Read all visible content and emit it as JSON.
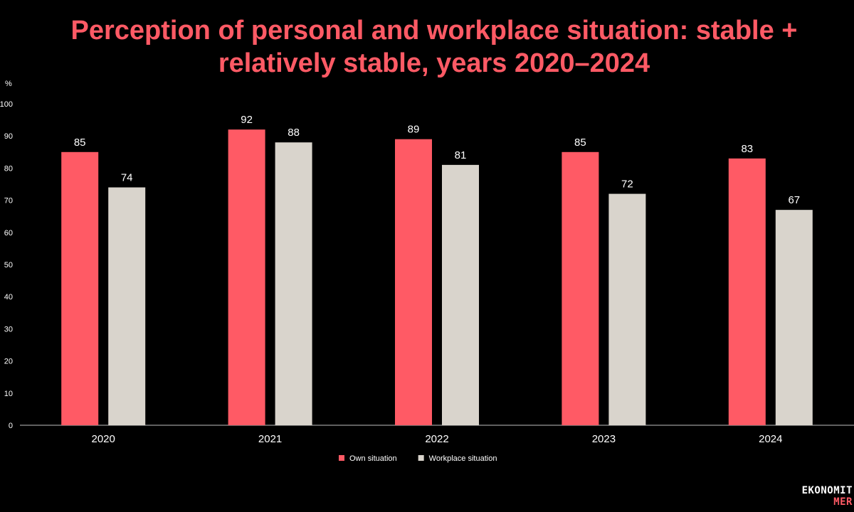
{
  "title_line1": "Perception of personal and workplace situation: stable +",
  "title_line2": "relatively stable, years 2020–2024",
  "logo": {
    "line1": "EKONOMIT",
    "line2": "MER"
  },
  "chart_data": {
    "type": "bar",
    "ylabel": "%",
    "ylim": [
      0,
      100
    ],
    "yticks": [
      0,
      10,
      20,
      30,
      40,
      50,
      60,
      70,
      80,
      90,
      100
    ],
    "categories": [
      "2020",
      "2021",
      "2022",
      "2023",
      "2024"
    ],
    "series": [
      {
        "name": "Own situation",
        "color": "#ff5a65",
        "values": [
          85,
          92,
          89,
          85,
          83
        ]
      },
      {
        "name": "Workplace situation",
        "color": "#d9d4cc",
        "values": [
          74,
          88,
          81,
          72,
          67
        ]
      }
    ],
    "grid": false,
    "legend": "bottom-center"
  }
}
